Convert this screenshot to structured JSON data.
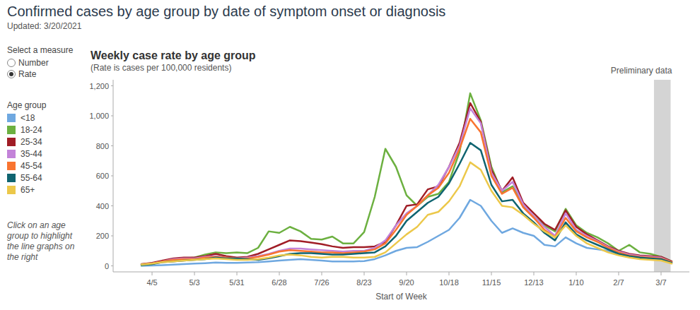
{
  "page": {
    "title": "Confirmed cases by age group by date of symptom onset or diagnosis",
    "updated": "Updated: 3/20/2021",
    "measure_label": "Select a measure",
    "measure_options": [
      "Number",
      "Rate"
    ],
    "measure_selected": "Rate",
    "legend_title": "Age group",
    "note": "Click on an age group to highlight the line graphs on the right"
  },
  "chart_data": {
    "type": "line",
    "title": "Weekly case rate by age group",
    "subtitle": "(Rate is cases per 100,000 residents)",
    "x_label": "Start of Week",
    "categories": [
      null,
      "4/5",
      null,
      null,
      null,
      "5/3",
      null,
      null,
      null,
      "5/31",
      null,
      null,
      null,
      "6/28",
      null,
      null,
      null,
      "7/26",
      null,
      null,
      null,
      "8/23",
      null,
      null,
      null,
      "9/20",
      null,
      null,
      null,
      "10/18",
      null,
      null,
      null,
      "11/15",
      null,
      null,
      null,
      "12/13",
      null,
      null,
      null,
      "1/10",
      null,
      null,
      null,
      "2/7",
      null,
      null,
      null,
      "3/7",
      null
    ],
    "ylim": [
      -40,
      1240
    ],
    "yticks": [
      0,
      200,
      400,
      600,
      800,
      {
        "value": 1000,
        "label": "1,000"
      },
      {
        "value": 1200,
        "label": "1,200"
      }
    ],
    "grid": false,
    "legend": "left",
    "annotations": [
      {
        "text": "Preliminary data",
        "x": "3/7"
      }
    ],
    "series": [
      {
        "name": "<18",
        "color": "#6fa8e0",
        "values": [
          0,
          2,
          5,
          8,
          12,
          15,
          18,
          22,
          20,
          20,
          22,
          25,
          30,
          35,
          40,
          45,
          40,
          35,
          30,
          30,
          30,
          32,
          45,
          70,
          100,
          120,
          125,
          160,
          200,
          240,
          320,
          440,
          400,
          300,
          220,
          250,
          220,
          200,
          140,
          130,
          190,
          150,
          120,
          110,
          100,
          75,
          60,
          50,
          45,
          40,
          20
        ]
      },
      {
        "name": "18-24",
        "color": "#6cb040",
        "values": [
          5,
          12,
          30,
          45,
          50,
          55,
          75,
          90,
          85,
          90,
          85,
          120,
          230,
          220,
          260,
          230,
          180,
          175,
          195,
          150,
          150,
          225,
          460,
          780,
          660,
          470,
          400,
          460,
          480,
          560,
          760,
          1150,
          970,
          660,
          490,
          530,
          400,
          330,
          270,
          230,
          380,
          270,
          220,
          190,
          150,
          100,
          140,
          90,
          80,
          60,
          30
        ]
      },
      {
        "name": "25-34",
        "color": "#a01d26",
        "values": [
          12,
          20,
          35,
          50,
          55,
          55,
          65,
          80,
          65,
          55,
          60,
          80,
          110,
          140,
          170,
          165,
          155,
          145,
          130,
          120,
          125,
          125,
          130,
          160,
          270,
          400,
          410,
          510,
          530,
          660,
          820,
          1085,
          960,
          640,
          500,
          590,
          420,
          350,
          280,
          240,
          370,
          260,
          210,
          170,
          130,
          100,
          80,
          70,
          65,
          60,
          30
        ]
      },
      {
        "name": "35-44",
        "color": "#c383d9",
        "values": [
          10,
          15,
          30,
          45,
          50,
          50,
          60,
          65,
          55,
          50,
          55,
          65,
          80,
          100,
          115,
          115,
          110,
          105,
          100,
          95,
          100,
          100,
          120,
          170,
          270,
          350,
          400,
          470,
          540,
          660,
          800,
          1050,
          950,
          620,
          500,
          560,
          410,
          330,
          260,
          200,
          350,
          240,
          200,
          165,
          125,
          95,
          75,
          65,
          60,
          55,
          25
        ]
      },
      {
        "name": "45-54",
        "color": "#f97430",
        "values": [
          10,
          15,
          30,
          40,
          45,
          45,
          55,
          60,
          55,
          50,
          50,
          60,
          75,
          95,
          105,
          100,
          95,
          90,
          90,
          85,
          90,
          95,
          110,
          150,
          240,
          340,
          400,
          470,
          520,
          620,
          780,
          980,
          890,
          600,
          480,
          520,
          390,
          320,
          240,
          190,
          320,
          230,
          190,
          160,
          120,
          90,
          70,
          60,
          55,
          50,
          25
        ]
      },
      {
        "name": "55-64",
        "color": "#0f6470",
        "values": [
          8,
          12,
          25,
          30,
          35,
          40,
          45,
          55,
          50,
          50,
          45,
          40,
          50,
          65,
          80,
          85,
          85,
          80,
          75,
          75,
          80,
          85,
          90,
          130,
          200,
          300,
          360,
          420,
          460,
          550,
          680,
          820,
          770,
          540,
          430,
          440,
          350,
          290,
          220,
          170,
          290,
          210,
          170,
          140,
          110,
          80,
          65,
          55,
          50,
          45,
          20
        ]
      },
      {
        "name": "65+",
        "color": "#ecc84a",
        "values": [
          10,
          15,
          25,
          30,
          35,
          40,
          45,
          50,
          45,
          40,
          40,
          45,
          55,
          70,
          75,
          70,
          60,
          55,
          60,
          60,
          55,
          55,
          60,
          90,
          150,
          210,
          260,
          340,
          360,
          430,
          530,
          690,
          640,
          500,
          400,
          390,
          340,
          280,
          230,
          190,
          270,
          200,
          150,
          120,
          90,
          70,
          55,
          45,
          40,
          35,
          15
        ]
      }
    ]
  }
}
